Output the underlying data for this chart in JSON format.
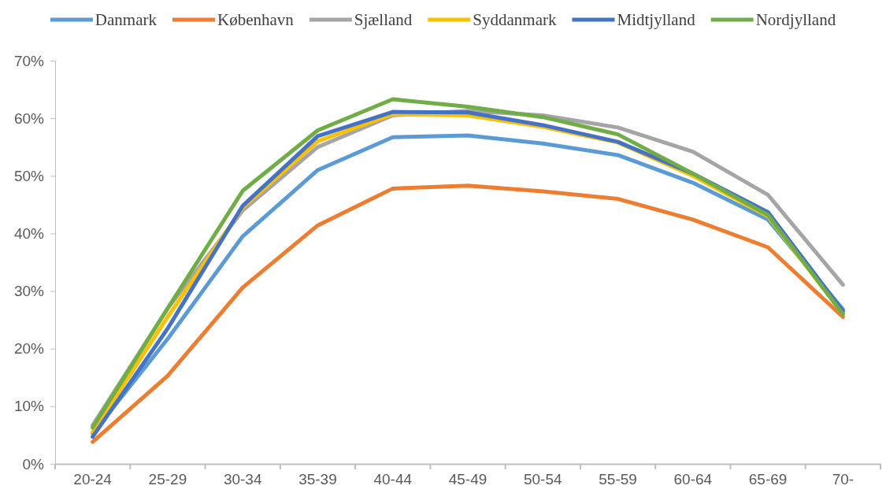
{
  "chart_data": {
    "type": "line",
    "categories": [
      "20-24",
      "25-29",
      "30-34",
      "35-39",
      "40-44",
      "45-49",
      "50-54",
      "55-59",
      "60-64",
      "65-69",
      "70-"
    ],
    "series": [
      {
        "name": "Danmark",
        "color": "#5b9bd5",
        "values": [
          5.3,
          21.7,
          39.5,
          51,
          56.7,
          57,
          55.6,
          53.6,
          48.8,
          42.4,
          26.8
        ]
      },
      {
        "name": "København",
        "color": "#ed7d31",
        "values": [
          3.8,
          15.3,
          30.6,
          41.4,
          47.8,
          48.3,
          47.3,
          46,
          42.4,
          37.6,
          25.5
        ]
      },
      {
        "name": "Sjælland",
        "color": "#a5a5a5",
        "values": [
          6.7,
          27,
          44,
          55,
          60.5,
          61.3,
          60.5,
          58.4,
          54.2,
          46.7,
          31.1
        ]
      },
      {
        "name": "Syddanmark",
        "color": "#ffc000",
        "values": [
          5.5,
          25.5,
          44.5,
          56,
          60.7,
          60.5,
          58.5,
          55.8,
          50,
          43,
          26
        ]
      },
      {
        "name": "Midtjylland",
        "color": "#4472c4",
        "values": [
          4.7,
          23.5,
          44.8,
          56.9,
          61.1,
          61,
          58.8,
          55.9,
          50.4,
          43.7,
          26.5
        ]
      },
      {
        "name": "Nordjylland",
        "color": "#70ad47",
        "values": [
          6.3,
          27,
          47.4,
          57.9,
          63.3,
          62,
          60.2,
          57.2,
          50.4,
          43.2,
          26
        ]
      }
    ],
    "ylim": [
      0,
      70
    ],
    "yticks": [
      {
        "value": 0,
        "label": "0%"
      },
      {
        "value": 10,
        "label": "10%"
      },
      {
        "value": 20,
        "label": "20%"
      },
      {
        "value": 30,
        "label": "30%"
      },
      {
        "value": 40,
        "label": "40%"
      },
      {
        "value": 50,
        "label": "50%"
      },
      {
        "value": 60,
        "label": "60%"
      },
      {
        "value": 70,
        "label": "70%"
      }
    ],
    "legend": "top",
    "grid": false,
    "marker": "none",
    "line_style": "solid"
  }
}
